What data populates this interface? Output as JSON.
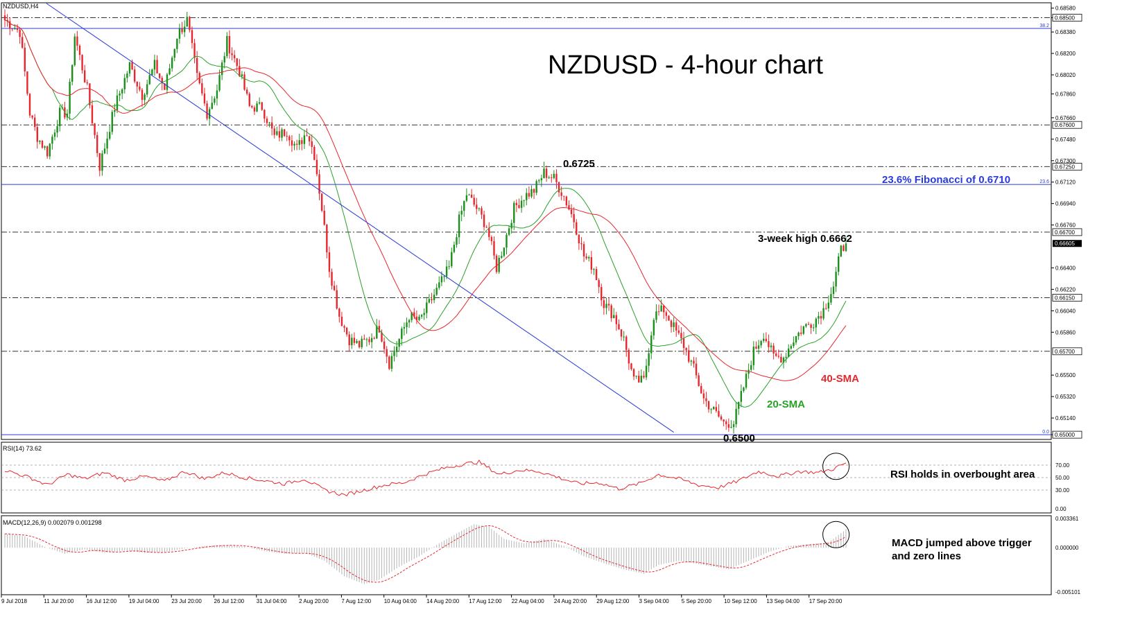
{
  "chart_data": {
    "type": "candlestick",
    "symbol_label": "NZDUSD,H4",
    "title": "NZDUSD - 4-hour chart",
    "colors": {
      "bull": "#1a8f1a",
      "bear": "#e8262c",
      "sma20": "#28a028",
      "sma40": "#e8262c",
      "trend": "#2a3ad8",
      "fib": "#2a3ad8",
      "rsi": "#e8262c",
      "macd_hist": "#b4b4b4",
      "macd_signal": "#e8262c",
      "annotation": "#000000"
    },
    "price_axis": {
      "min": 0.6496,
      "max": 0.68625,
      "ticks": [
        "0.68580",
        "0.68500",
        "0.68380",
        "0.68200",
        "0.68020",
        "0.67860",
        "0.67660",
        "0.67480",
        "0.67300",
        "0.67120",
        "0.66940",
        "0.66760",
        "0.66400",
        "0.66220",
        "0.66040",
        "0.65860",
        "0.65500",
        "0.65320",
        "0.65140",
        "0.65000"
      ]
    },
    "highlighted_levels": [
      {
        "label": "0.68500",
        "value": 0.685
      },
      {
        "label": "0.67600",
        "value": 0.676
      },
      {
        "label": "0.67250",
        "value": 0.6725
      },
      {
        "label": "0.66700",
        "value": 0.667
      },
      {
        "label": "0.66150",
        "value": 0.6615
      },
      {
        "label": "0.65700",
        "value": 0.657
      },
      {
        "label": "0.65000",
        "value": 0.65
      }
    ],
    "current_price_label": "0.66605",
    "current_price": 0.66605,
    "fibonacci": [
      {
        "label": "38.2",
        "value": 0.6841
      },
      {
        "label": "23.6",
        "value": 0.671
      },
      {
        "label": "0.0",
        "value": 0.65
      }
    ],
    "x_axis_labels": [
      "9 Jul 2018",
      "11 Jul 20:00",
      "16 Jul 12:00",
      "19 Jul 04:00",
      "23 Jul 20:00",
      "26 Jul 12:00",
      "31 Jul 04:00",
      "2 Aug 20:00",
      "7 Aug 12:00",
      "10 Aug 04:00",
      "14 Aug 20:00",
      "17 Aug 12:00",
      "22 Aug 04:00",
      "24 Aug 20:00",
      "29 Aug 12:00",
      "3 Sep 04:00",
      "5 Sep 20:00",
      "10 Sep 12:00",
      "13 Sep 04:00",
      "17 Sep 20:00"
    ],
    "price_anchors": [
      {
        "bar": 0,
        "value": 0.6848
      },
      {
        "bar": 6,
        "value": 0.6838
      },
      {
        "bar": 10,
        "value": 0.677
      },
      {
        "bar": 13,
        "value": 0.675
      },
      {
        "bar": 17,
        "value": 0.6737
      },
      {
        "bar": 22,
        "value": 0.677
      },
      {
        "bar": 25,
        "value": 0.677
      },
      {
        "bar": 28,
        "value": 0.6835
      },
      {
        "bar": 33,
        "value": 0.679
      },
      {
        "bar": 38,
        "value": 0.6725
      },
      {
        "bar": 44,
        "value": 0.6775
      },
      {
        "bar": 50,
        "value": 0.681
      },
      {
        "bar": 55,
        "value": 0.6785
      },
      {
        "bar": 60,
        "value": 0.681
      },
      {
        "bar": 64,
        "value": 0.679
      },
      {
        "bar": 69,
        "value": 0.6835
      },
      {
        "bar": 73,
        "value": 0.6848
      },
      {
        "bar": 77,
        "value": 0.68
      },
      {
        "bar": 81,
        "value": 0.677
      },
      {
        "bar": 85,
        "value": 0.679
      },
      {
        "bar": 89,
        "value": 0.683
      },
      {
        "bar": 94,
        "value": 0.6805
      },
      {
        "bar": 98,
        "value": 0.6775
      },
      {
        "bar": 103,
        "value": 0.6775
      },
      {
        "bar": 108,
        "value": 0.675
      },
      {
        "bar": 113,
        "value": 0.6755
      },
      {
        "bar": 117,
        "value": 0.674
      },
      {
        "bar": 121,
        "value": 0.6755
      },
      {
        "bar": 124,
        "value": 0.6735
      },
      {
        "bar": 127,
        "value": 0.669
      },
      {
        "bar": 130,
        "value": 0.664
      },
      {
        "bar": 134,
        "value": 0.66
      },
      {
        "bar": 138,
        "value": 0.658
      },
      {
        "bar": 142,
        "value": 0.6575
      },
      {
        "bar": 146,
        "value": 0.658
      },
      {
        "bar": 150,
        "value": 0.659
      },
      {
        "bar": 154,
        "value": 0.656
      },
      {
        "bar": 158,
        "value": 0.658
      },
      {
        "bar": 162,
        "value": 0.66
      },
      {
        "bar": 166,
        "value": 0.6595
      },
      {
        "bar": 170,
        "value": 0.661
      },
      {
        "bar": 174,
        "value": 0.6625
      },
      {
        "bar": 178,
        "value": 0.664
      },
      {
        "bar": 182,
        "value": 0.668
      },
      {
        "bar": 185,
        "value": 0.6702
      },
      {
        "bar": 189,
        "value": 0.669
      },
      {
        "bar": 193,
        "value": 0.6675
      },
      {
        "bar": 197,
        "value": 0.664
      },
      {
        "bar": 200,
        "value": 0.666
      },
      {
        "bar": 204,
        "value": 0.669
      },
      {
        "bar": 208,
        "value": 0.67
      },
      {
        "bar": 212,
        "value": 0.6705
      },
      {
        "bar": 216,
        "value": 0.672
      },
      {
        "bar": 220,
        "value": 0.6715
      },
      {
        "bar": 224,
        "value": 0.67
      },
      {
        "bar": 228,
        "value": 0.668
      },
      {
        "bar": 232,
        "value": 0.665
      },
      {
        "bar": 236,
        "value": 0.664
      },
      {
        "bar": 240,
        "value": 0.661
      },
      {
        "bar": 244,
        "value": 0.66
      },
      {
        "bar": 248,
        "value": 0.658
      },
      {
        "bar": 252,
        "value": 0.6545
      },
      {
        "bar": 256,
        "value": 0.6545
      },
      {
        "bar": 260,
        "value": 0.66
      },
      {
        "bar": 264,
        "value": 0.6605
      },
      {
        "bar": 268,
        "value": 0.659
      },
      {
        "bar": 272,
        "value": 0.6575
      },
      {
        "bar": 276,
        "value": 0.6555
      },
      {
        "bar": 280,
        "value": 0.653
      },
      {
        "bar": 284,
        "value": 0.652
      },
      {
        "bar": 288,
        "value": 0.651
      },
      {
        "bar": 292,
        "value": 0.651
      },
      {
        "bar": 296,
        "value": 0.654
      },
      {
        "bar": 300,
        "value": 0.657
      },
      {
        "bar": 304,
        "value": 0.6585
      },
      {
        "bar": 308,
        "value": 0.6565
      },
      {
        "bar": 312,
        "value": 0.6565
      },
      {
        "bar": 316,
        "value": 0.658
      },
      {
        "bar": 320,
        "value": 0.659
      },
      {
        "bar": 324,
        "value": 0.6595
      },
      {
        "bar": 328,
        "value": 0.6605
      },
      {
        "bar": 332,
        "value": 0.6625
      },
      {
        "bar": 335,
        "value": 0.6655
      },
      {
        "bar": 337,
        "value": 0.666
      }
    ],
    "pivot_anchors": [
      {
        "bar": 0,
        "value": 0.684
      },
      {
        "bar": 18,
        "value": 0.674
      },
      {
        "bar": 30,
        "value": 0.6745
      },
      {
        "bar": 45,
        "value": 0.6755
      },
      {
        "bar": 60,
        "value": 0.678
      },
      {
        "bar": 80,
        "value": 0.6805
      },
      {
        "bar": 100,
        "value": 0.679
      },
      {
        "bar": 115,
        "value": 0.677
      },
      {
        "bar": 125,
        "value": 0.674
      },
      {
        "bar": 135,
        "value": 0.668
      },
      {
        "bar": 145,
        "value": 0.662
      },
      {
        "bar": 158,
        "value": 0.6592
      },
      {
        "bar": 170,
        "value": 0.6605
      },
      {
        "bar": 182,
        "value": 0.664
      },
      {
        "bar": 195,
        "value": 0.6675
      },
      {
        "bar": 205,
        "value": 0.6685
      },
      {
        "bar": 215,
        "value": 0.67
      },
      {
        "bar": 225,
        "value": 0.6695
      },
      {
        "bar": 240,
        "value": 0.665
      },
      {
        "bar": 255,
        "value": 0.66
      },
      {
        "bar": 270,
        "value": 0.658
      },
      {
        "bar": 285,
        "value": 0.6555
      },
      {
        "bar": 298,
        "value": 0.6552
      },
      {
        "bar": 310,
        "value": 0.656
      },
      {
        "bar": 325,
        "value": 0.6575
      },
      {
        "bar": 337,
        "value": 0.6595
      }
    ],
    "labels": {
      "high_0725": "0.6725",
      "fib_label": "23.6% Fibonacci of 0.6710",
      "three_week_high": "3-week high  0.6662",
      "sma40": "40-SMA",
      "sma20": "20-SMA",
      "low_0650": "0.6500"
    },
    "rsi": {
      "title": "RSI(14) 73.62",
      "ticks": [
        "70.00",
        "50.00",
        "30.00",
        "0.00"
      ],
      "levels": [
        70,
        50,
        30
      ],
      "anchors": [
        {
          "bar": 0,
          "value": 62
        },
        {
          "bar": 10,
          "value": 50
        },
        {
          "bar": 17,
          "value": 38
        },
        {
          "bar": 25,
          "value": 55
        },
        {
          "bar": 32,
          "value": 48
        },
        {
          "bar": 40,
          "value": 58
        },
        {
          "bar": 48,
          "value": 46
        },
        {
          "bar": 56,
          "value": 52
        },
        {
          "bar": 64,
          "value": 44
        },
        {
          "bar": 72,
          "value": 60
        },
        {
          "bar": 80,
          "value": 48
        },
        {
          "bar": 88,
          "value": 58
        },
        {
          "bar": 96,
          "value": 50
        },
        {
          "bar": 104,
          "value": 45
        },
        {
          "bar": 112,
          "value": 40
        },
        {
          "bar": 120,
          "value": 48
        },
        {
          "bar": 128,
          "value": 30
        },
        {
          "bar": 136,
          "value": 22
        },
        {
          "bar": 144,
          "value": 30
        },
        {
          "bar": 152,
          "value": 38
        },
        {
          "bar": 160,
          "value": 42
        },
        {
          "bar": 168,
          "value": 55
        },
        {
          "bar": 176,
          "value": 65
        },
        {
          "bar": 184,
          "value": 72
        },
        {
          "bar": 190,
          "value": 75
        },
        {
          "bar": 198,
          "value": 55
        },
        {
          "bar": 206,
          "value": 62
        },
        {
          "bar": 214,
          "value": 60
        },
        {
          "bar": 222,
          "value": 50
        },
        {
          "bar": 230,
          "value": 40
        },
        {
          "bar": 238,
          "value": 42
        },
        {
          "bar": 246,
          "value": 32
        },
        {
          "bar": 254,
          "value": 40
        },
        {
          "bar": 262,
          "value": 55
        },
        {
          "bar": 270,
          "value": 48
        },
        {
          "bar": 278,
          "value": 38
        },
        {
          "bar": 286,
          "value": 34
        },
        {
          "bar": 294,
          "value": 45
        },
        {
          "bar": 302,
          "value": 60
        },
        {
          "bar": 310,
          "value": 52
        },
        {
          "bar": 318,
          "value": 60
        },
        {
          "bar": 326,
          "value": 58
        },
        {
          "bar": 332,
          "value": 64
        },
        {
          "bar": 337,
          "value": 73.6
        }
      ]
    },
    "rsi_label": "RSI holds in overbought area",
    "macd": {
      "title": "MACD(12,26,9) 0.002079 0.001298",
      "ticks": [
        "0.003361",
        "0.000000",
        "-0.005101"
      ],
      "min": -0.005101,
      "max": 0.003361,
      "anchors": [
        {
          "bar": 0,
          "value": 0.0016
        },
        {
          "bar": 8,
          "value": 0.0013
        },
        {
          "bar": 16,
          "value": 0.0001
        },
        {
          "bar": 24,
          "value": -0.0007
        },
        {
          "bar": 32,
          "value": -0.0002
        },
        {
          "bar": 40,
          "value": -0.0006
        },
        {
          "bar": 48,
          "value": -0.0003
        },
        {
          "bar": 56,
          "value": -0.0006
        },
        {
          "bar": 64,
          "value": -0.0005
        },
        {
          "bar": 72,
          "value": -0.0001
        },
        {
          "bar": 80,
          "value": 0.0002
        },
        {
          "bar": 88,
          "value": 0.0003
        },
        {
          "bar": 96,
          "value": 0.0001
        },
        {
          "bar": 104,
          "value": -0.0004
        },
        {
          "bar": 112,
          "value": -0.0007
        },
        {
          "bar": 120,
          "value": -0.0006
        },
        {
          "bar": 128,
          "value": -0.0015
        },
        {
          "bar": 136,
          "value": -0.0033
        },
        {
          "bar": 144,
          "value": -0.0042
        },
        {
          "bar": 150,
          "value": -0.0037
        },
        {
          "bar": 158,
          "value": -0.0022
        },
        {
          "bar": 166,
          "value": -0.001
        },
        {
          "bar": 174,
          "value": 0.0005
        },
        {
          "bar": 182,
          "value": 0.0018
        },
        {
          "bar": 188,
          "value": 0.0027
        },
        {
          "bar": 194,
          "value": 0.0024
        },
        {
          "bar": 200,
          "value": 0.001
        },
        {
          "bar": 208,
          "value": 0.0005
        },
        {
          "bar": 216,
          "value": 0.001
        },
        {
          "bar": 224,
          "value": 0.0002
        },
        {
          "bar": 232,
          "value": -0.001
        },
        {
          "bar": 240,
          "value": -0.0018
        },
        {
          "bar": 248,
          "value": -0.0025
        },
        {
          "bar": 256,
          "value": -0.003
        },
        {
          "bar": 262,
          "value": -0.002
        },
        {
          "bar": 270,
          "value": -0.0015
        },
        {
          "bar": 280,
          "value": -0.002
        },
        {
          "bar": 290,
          "value": -0.0025
        },
        {
          "bar": 298,
          "value": -0.0015
        },
        {
          "bar": 306,
          "value": -0.0005
        },
        {
          "bar": 314,
          "value": 0.0002
        },
        {
          "bar": 322,
          "value": 0.0004
        },
        {
          "bar": 330,
          "value": 0.0006
        },
        {
          "bar": 337,
          "value": 0.0021
        }
      ]
    },
    "macd_label_line1": "MACD jumped above trigger",
    "macd_label_line2": "and zero lines"
  }
}
